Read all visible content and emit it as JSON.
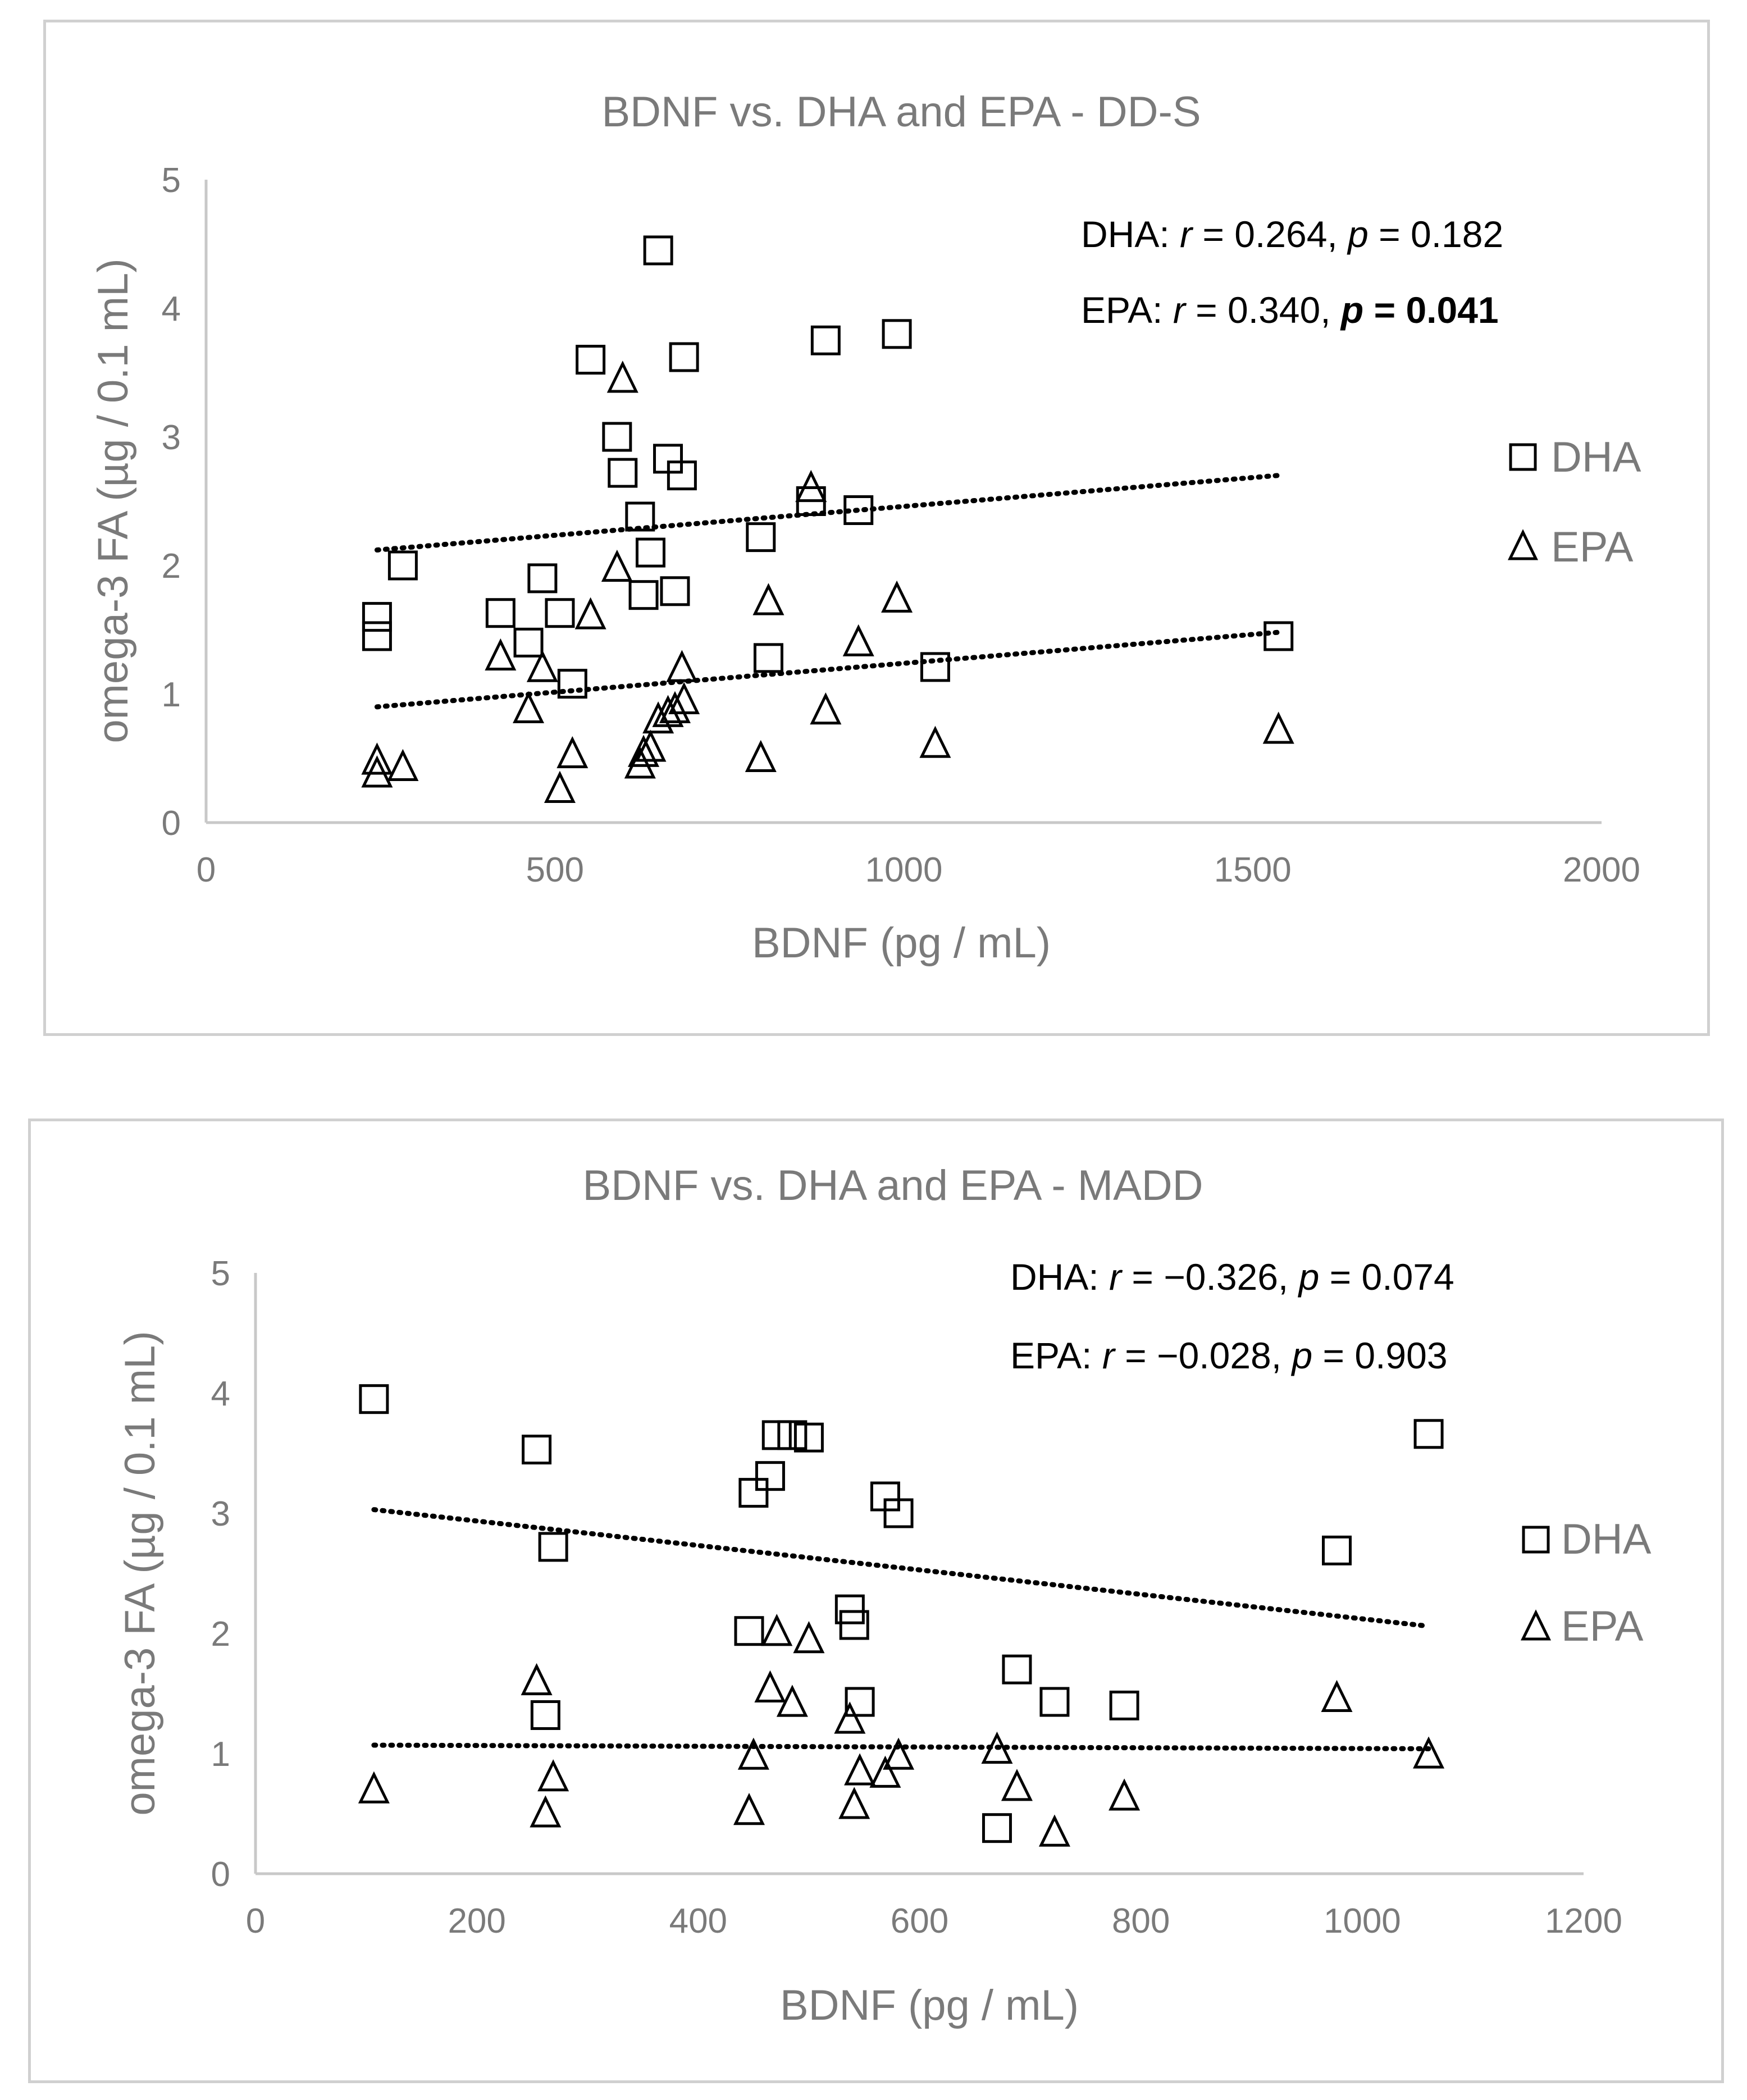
{
  "chart_data": [
    {
      "type": "scatter",
      "title": "BDNF vs. DHA and EPA - DD-S",
      "xlabel": "BDNF (pg / mL)",
      "ylabel": "omega-3 FA (µg / 0.1 mL)",
      "xlim": [
        0,
        2000
      ],
      "ylim": [
        0,
        5
      ],
      "xticks": [
        "0",
        "500",
        "1000",
        "1500",
        "2000"
      ],
      "yticks": [
        "0",
        "1",
        "2",
        "3",
        "4",
        "5"
      ],
      "legend": "right",
      "annotations": [
        {
          "series": "DHA:",
          "r_sym": "r",
          "r_val": " = 0.264, ",
          "p_sym": "p",
          "p_val": " = 0.182",
          "bold_p": false
        },
        {
          "series": "EPA:",
          "r_sym": "r",
          "r_val": " = 0.340, ",
          "p_sym": "p",
          "p_val": " = 0.041",
          "bold_p": true
        }
      ],
      "series": [
        {
          "name": "DHA",
          "marker": "square",
          "points": [
            [
              245,
              1.6
            ],
            [
              245,
              1.45
            ],
            [
              282,
              2.0
            ],
            [
              422,
              1.63
            ],
            [
              462,
              1.4
            ],
            [
              482,
              1.9
            ],
            [
              507,
              1.63
            ],
            [
              525,
              1.08
            ],
            [
              551,
              3.6
            ],
            [
              589,
              3.0
            ],
            [
              597,
              2.72
            ],
            [
              622,
              2.38
            ],
            [
              627,
              1.77
            ],
            [
              637,
              2.1
            ],
            [
              648,
              4.45
            ],
            [
              662,
              2.83
            ],
            [
              672,
              1.8
            ],
            [
              682,
              2.7
            ],
            [
              685,
              3.62
            ],
            [
              795,
              2.22
            ],
            [
              806,
              1.28
            ],
            [
              867,
              2.5
            ],
            [
              888,
              3.75
            ],
            [
              935,
              2.43
            ],
            [
              990,
              3.8
            ],
            [
              1045,
              1.21
            ],
            [
              1537,
              1.45
            ]
          ],
          "trend": [
            [
              245,
              2.12
            ],
            [
              1537,
              2.7
            ]
          ]
        },
        {
          "name": "EPA",
          "marker": "triangle",
          "points": [
            [
              245,
              0.48
            ],
            [
              245,
              0.38
            ],
            [
              282,
              0.43
            ],
            [
              422,
              1.29
            ],
            [
              462,
              0.88
            ],
            [
              482,
              1.2
            ],
            [
              507,
              0.26
            ],
            [
              525,
              0.53
            ],
            [
              551,
              1.61
            ],
            [
              589,
              1.98
            ],
            [
              597,
              3.45
            ],
            [
              622,
              0.45
            ],
            [
              627,
              0.54
            ],
            [
              637,
              0.58
            ],
            [
              648,
              0.8
            ],
            [
              662,
              0.85
            ],
            [
              672,
              0.88
            ],
            [
              682,
              1.2
            ],
            [
              685,
              0.95
            ],
            [
              795,
              0.5
            ],
            [
              806,
              1.72
            ],
            [
              867,
              2.6
            ],
            [
              888,
              0.87
            ],
            [
              935,
              1.4
            ],
            [
              990,
              1.74
            ],
            [
              1045,
              0.61
            ],
            [
              1537,
              0.72
            ]
          ],
          "trend": [
            [
              245,
              0.9
            ],
            [
              1537,
              1.48
            ]
          ]
        }
      ]
    },
    {
      "type": "scatter",
      "title": "BDNF vs. DHA and EPA - MADD",
      "xlabel": "BDNF (pg / mL)",
      "ylabel": "omega-3 FA (µg / 0.1 mL)",
      "xlim": [
        0,
        1200
      ],
      "ylim": [
        0,
        5
      ],
      "xticks": [
        "0",
        "200",
        "400",
        "600",
        "800",
        "1000",
        "1200"
      ],
      "yticks": [
        "0",
        "1",
        "2",
        "3",
        "4",
        "5"
      ],
      "legend": "right",
      "annotations": [
        {
          "series": "DHA:",
          "r_sym": "r",
          "r_val": " = −0.326, ",
          "p_sym": "p",
          "p_val": " = 0.074",
          "bold_p": false
        },
        {
          "series": "EPA:",
          "r_sym": "r",
          "r_val": " = −0.028, ",
          "p_sym": "p",
          "p_val": " = 0.903",
          "bold_p": false
        }
      ],
      "series": [
        {
          "name": "DHA",
          "marker": "square",
          "points": [
            [
              107,
              3.95
            ],
            [
              254,
              3.53
            ],
            [
              262,
              1.32
            ],
            [
              269,
              2.72
            ],
            [
              446,
              2.02
            ],
            [
              450,
              3.17
            ],
            [
              465,
              3.31
            ],
            [
              471,
              3.65
            ],
            [
              485,
              3.65
            ],
            [
              500,
              3.63
            ],
            [
              537,
              2.2
            ],
            [
              541,
              2.07
            ],
            [
              546,
              1.43
            ],
            [
              569,
              3.14
            ],
            [
              581,
              3.0
            ],
            [
              670,
              0.38
            ],
            [
              688,
              1.7
            ],
            [
              722,
              1.43
            ],
            [
              785,
              1.4
            ],
            [
              977,
              2.69
            ],
            [
              1060,
              3.66
            ]
          ],
          "trend": [
            [
              107,
              3.03
            ],
            [
              1060,
              2.06
            ]
          ]
        },
        {
          "name": "EPA",
          "marker": "triangle",
          "points": [
            [
              107,
              0.7
            ],
            [
              254,
              1.6
            ],
            [
              262,
              0.5
            ],
            [
              269,
              0.8
            ],
            [
              446,
              0.52
            ],
            [
              450,
              0.98
            ],
            [
              465,
              1.54
            ],
            [
              471,
              2.01
            ],
            [
              485,
              1.42
            ],
            [
              500,
              1.95
            ],
            [
              537,
              1.28
            ],
            [
              541,
              0.57
            ],
            [
              546,
              0.85
            ],
            [
              569,
              0.83
            ],
            [
              581,
              0.98
            ],
            [
              670,
              1.03
            ],
            [
              688,
              0.72
            ],
            [
              722,
              0.34
            ],
            [
              785,
              0.64
            ],
            [
              977,
              1.46
            ],
            [
              1060,
              0.99
            ]
          ],
          "trend": [
            [
              107,
              1.07
            ],
            [
              1060,
              1.04
            ]
          ]
        }
      ]
    }
  ]
}
